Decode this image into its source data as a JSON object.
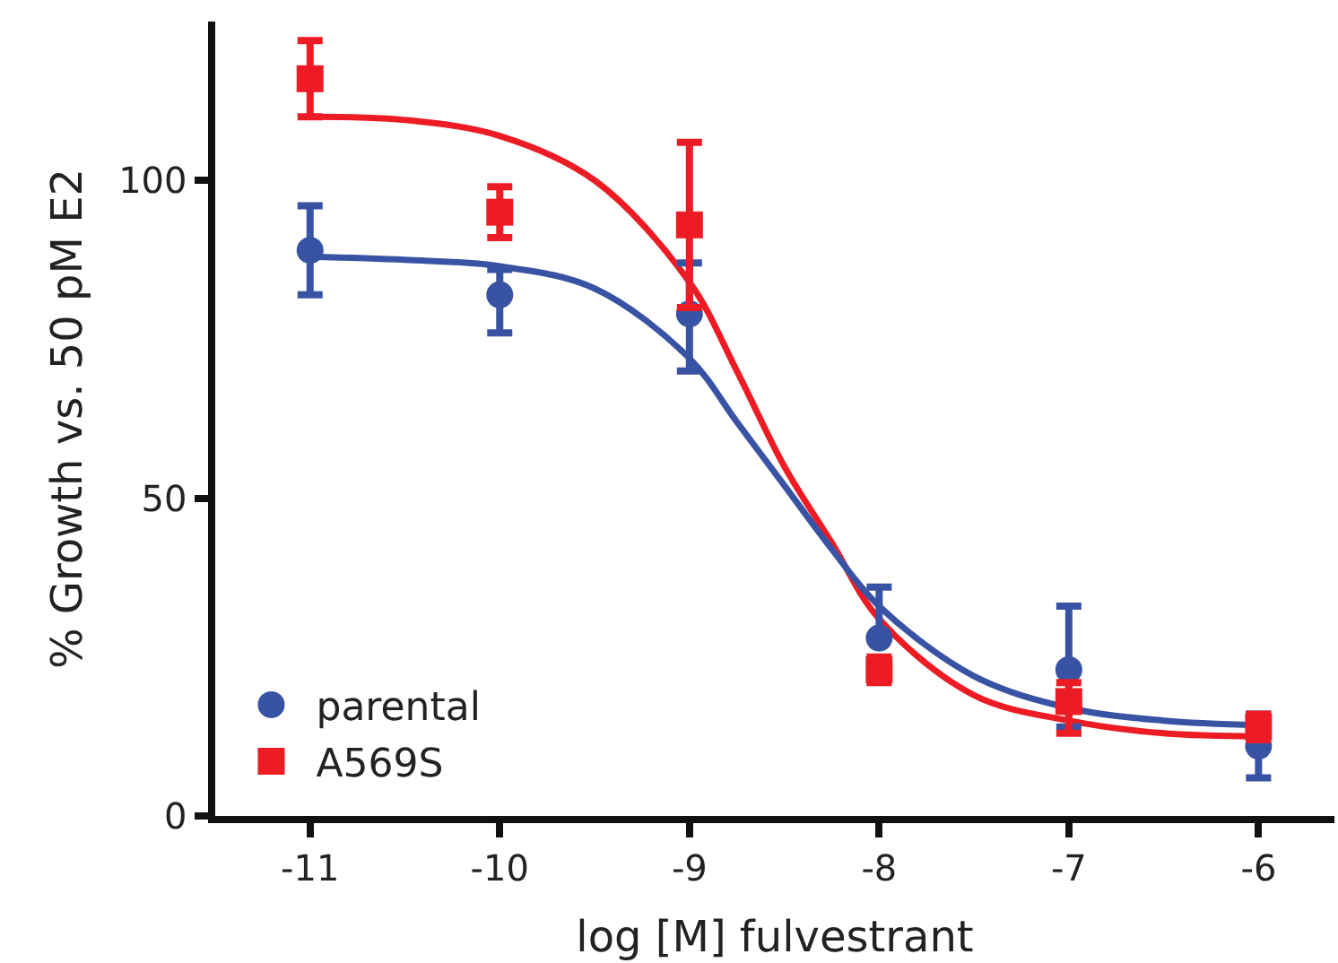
{
  "chart_data": {
    "type": "scatter",
    "xlabel": "log [M] fulvestrant",
    "ylabel": "% Growth vs. 50 pM E2",
    "x": [
      -11,
      -10,
      -9,
      -8,
      -7,
      -6
    ],
    "xlim": [
      -11.5,
      -5.6
    ],
    "xticks": [
      -11,
      -10,
      -9,
      -8,
      -7,
      -6
    ],
    "ylim": [
      0,
      125
    ],
    "yticks": [
      0,
      50,
      100
    ],
    "grid": false,
    "legend": "bottom left",
    "series": [
      {
        "name": "parental",
        "color": "#3953a4",
        "marker": "circle",
        "values": [
          89,
          82,
          79,
          28,
          23,
          11
        ],
        "errors": [
          [
            82,
            96
          ],
          [
            76,
            86
          ],
          [
            70,
            87
          ],
          [
            28,
            36
          ],
          [
            14,
            33
          ],
          [
            6,
            16
          ]
        ]
      },
      {
        "name": "A569S",
        "color": "#ed1c24",
        "marker": "square",
        "values": [
          116,
          95,
          93,
          23,
          18,
          14
        ],
        "errors": [
          [
            110,
            122
          ],
          [
            91,
            99
          ],
          [
            80,
            106
          ],
          [
            21,
            25
          ],
          [
            13,
            21
          ],
          [
            12,
            16
          ]
        ]
      },
      {
        "type": "line",
        "color": "#3953a4",
        "marker": "none",
        "x": [
          -11,
          -10.5,
          -10,
          -9.5,
          -9,
          -8.75,
          -8.5,
          -8.25,
          -8,
          -7.5,
          -7,
          -6.5,
          -6
        ],
        "values": [
          88,
          87.5,
          86.5,
          83,
          72,
          62,
          52,
          42,
          33,
          22,
          17,
          15,
          14.3
        ]
      },
      {
        "type": "line",
        "color": "#ed1c24",
        "marker": "none",
        "x": [
          -11,
          -10.5,
          -10,
          -9.5,
          -9,
          -8.75,
          -8.5,
          -8.25,
          -8,
          -7.5,
          -7,
          -6.5,
          -6
        ],
        "values": [
          110,
          109.5,
          107,
          100,
          84,
          70,
          55,
          43,
          31,
          19,
          15,
          13,
          12.5
        ]
      }
    ]
  }
}
